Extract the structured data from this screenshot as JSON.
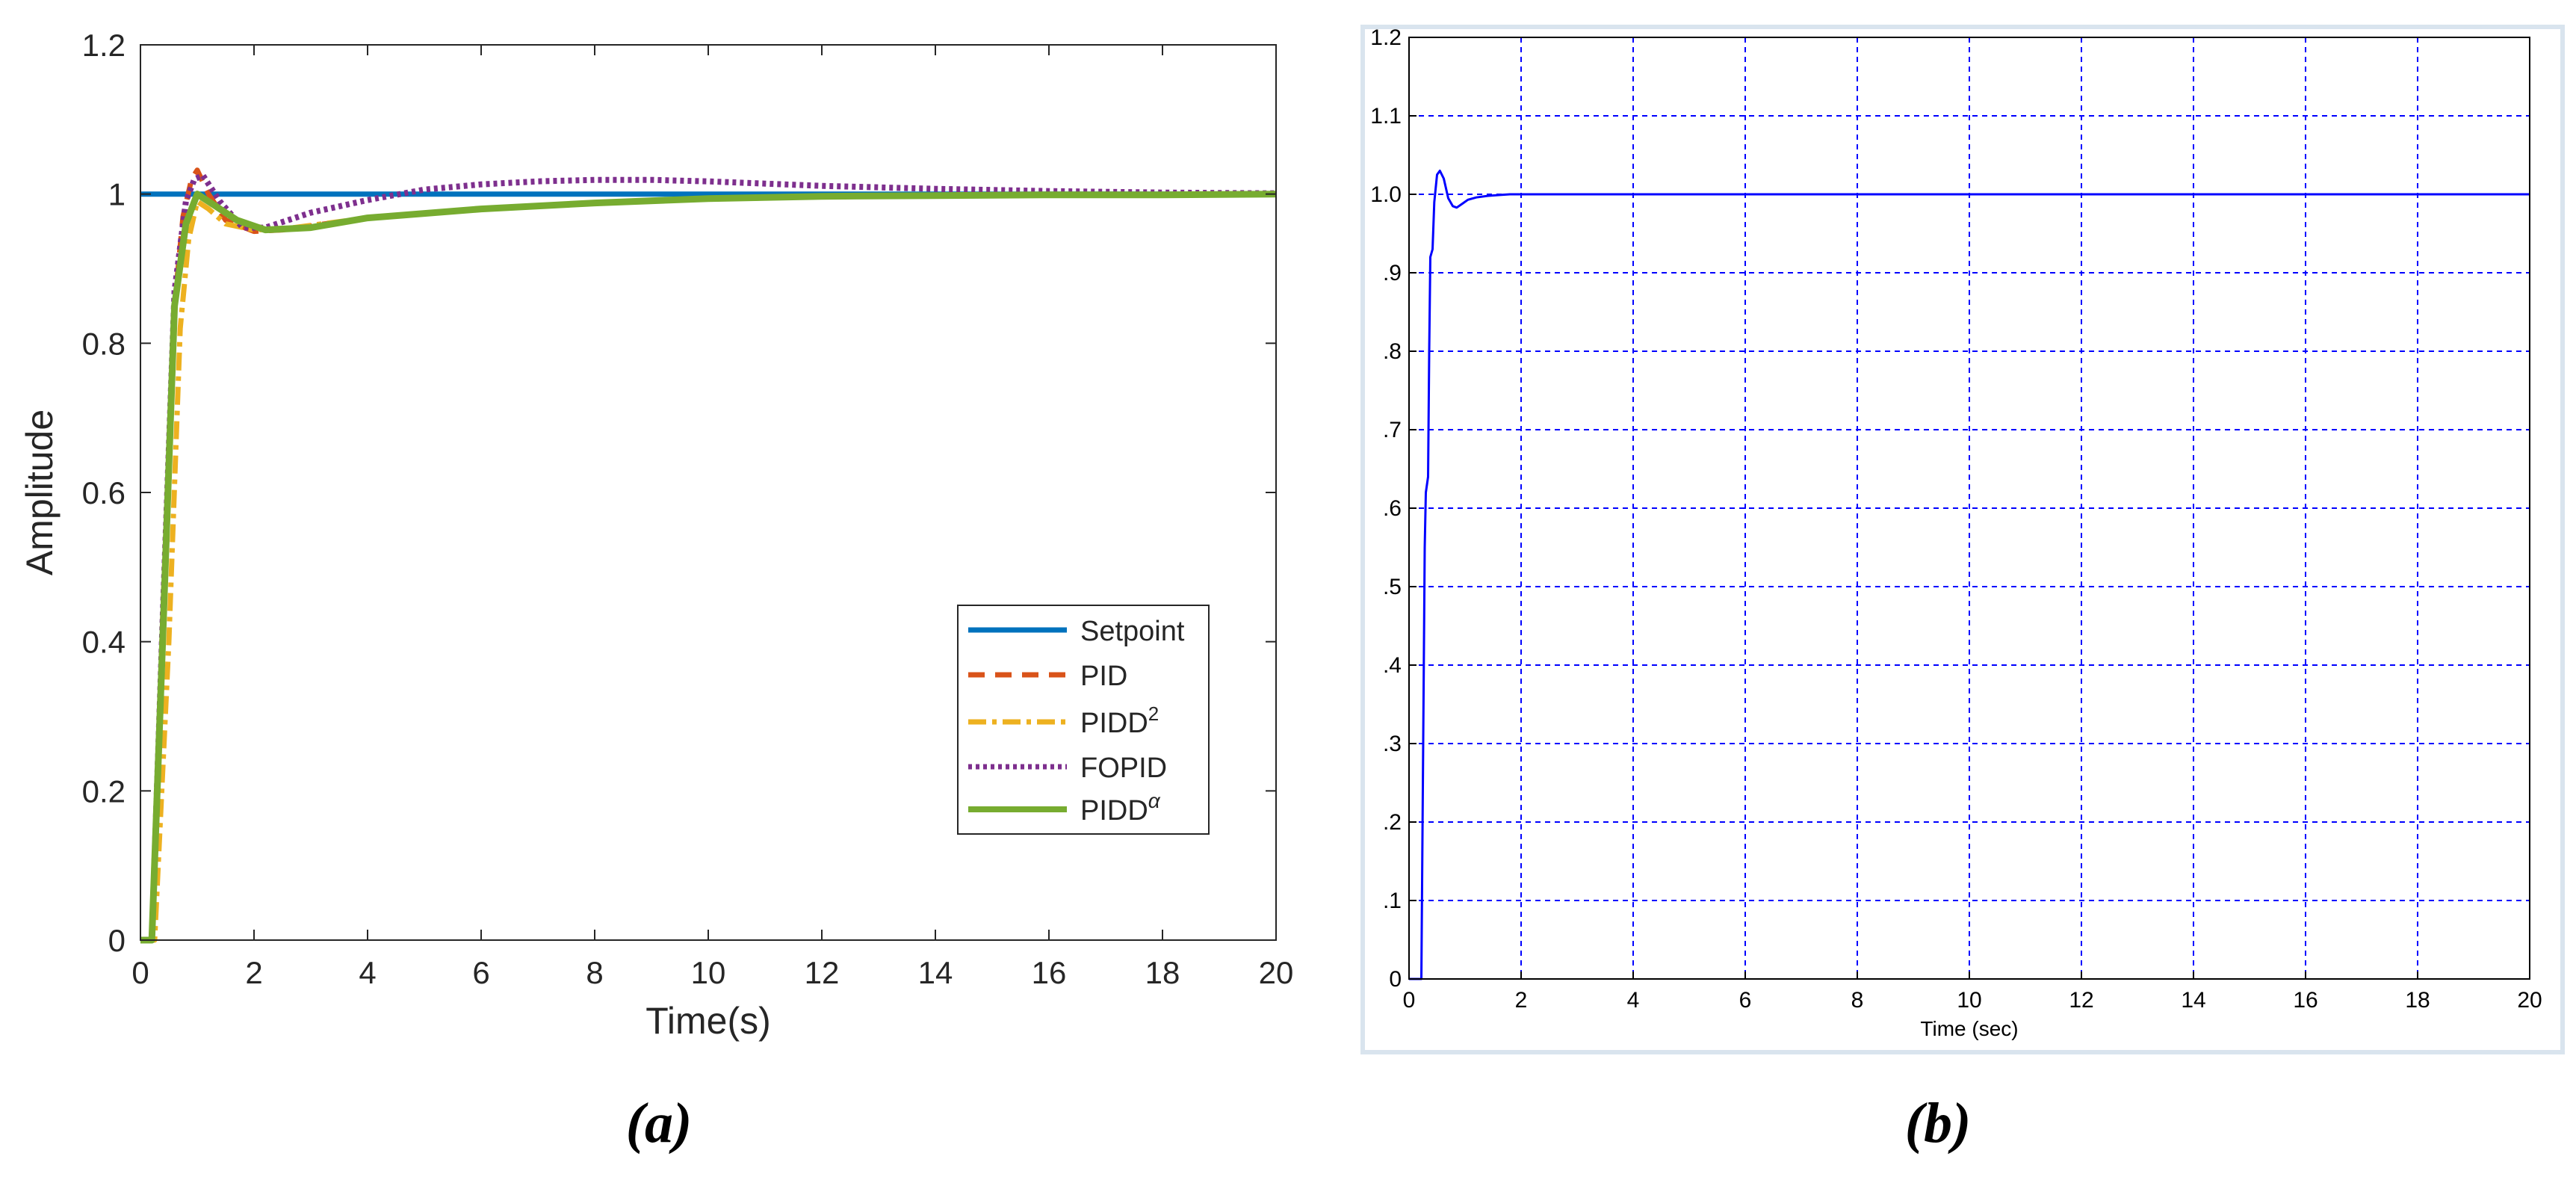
{
  "panel_labels": [
    "(a)",
    "(b)"
  ],
  "legend_labels": {
    "setpoint": "Setpoint",
    "pid": "PID",
    "pidd2_base": "PIDD",
    "pidd2_sup": "2",
    "fopid": "FOPID",
    "piddalpha_base": "PIDD",
    "piddalpha_sup": "α"
  },
  "colors": {
    "setpoint": "#0072bd",
    "pid": "#d95319",
    "pidd2": "#edb120",
    "fopid": "#7e2f8e",
    "piddalpha": "#77ac30",
    "chart_b_line": "#0000ff",
    "chart_b_grid": "#0000ff",
    "chart_b_frame": "#d9e4ee"
  },
  "chart_data": [
    {
      "type": "line",
      "title": "",
      "xlabel": "Time(s)",
      "ylabel": "Amplitude",
      "xlim": [
        0,
        20
      ],
      "ylim": [
        0,
        1.2
      ],
      "xticks": [
        0,
        2,
        4,
        6,
        8,
        10,
        12,
        14,
        16,
        18,
        20
      ],
      "yticks": [
        0,
        0.2,
        0.4,
        0.6,
        0.8,
        1,
        1.2
      ],
      "ytick_labels": [
        "0",
        "0.2",
        "0.4",
        "0.6",
        "0.8",
        "1",
        "1.2"
      ],
      "grid": false,
      "legend_position": "lower-right",
      "series": [
        {
          "key": "setpoint",
          "name": "Setpoint",
          "style": "solid",
          "x": [
            0,
            20
          ],
          "y": [
            1,
            1
          ]
        },
        {
          "key": "pid",
          "name": "PID",
          "style": "dashed",
          "x": [
            0,
            0.2,
            0.4,
            0.6,
            0.75,
            0.9,
            1.0,
            1.2,
            1.5,
            2.0,
            2.5,
            4,
            6,
            8,
            10,
            12,
            14,
            16,
            18,
            20
          ],
          "y": [
            0,
            0,
            0.45,
            0.85,
            0.97,
            1.02,
            1.032,
            1.0,
            0.965,
            0.95,
            0.952,
            0.968,
            0.98,
            0.988,
            0.994,
            0.997,
            0.998,
            0.999,
            0.999,
            1.0
          ]
        },
        {
          "key": "pidd2",
          "name": "PIDD2",
          "style": "dashdot",
          "x": [
            0,
            0.25,
            0.5,
            0.7,
            0.85,
            1.0,
            1.2,
            1.5,
            2.0,
            2.5,
            4,
            6,
            8,
            10,
            12,
            14,
            16,
            18,
            20
          ],
          "y": [
            0,
            0,
            0.4,
            0.82,
            0.94,
            0.99,
            0.98,
            0.96,
            0.952,
            0.953,
            0.968,
            0.98,
            0.988,
            0.994,
            0.997,
            0.998,
            0.999,
            0.999,
            1.0
          ]
        },
        {
          "key": "fopid",
          "name": "FOPID",
          "style": "dotted",
          "x": [
            0,
            0.2,
            0.4,
            0.6,
            0.8,
            0.95,
            1.1,
            1.4,
            1.8,
            2.2,
            3,
            4,
            5,
            6,
            7,
            8,
            9,
            10,
            11,
            12,
            14,
            16,
            18,
            20
          ],
          "y": [
            0,
            0,
            0.45,
            0.87,
            0.99,
            1.02,
            1.025,
            0.99,
            0.955,
            0.955,
            0.975,
            0.992,
            1.006,
            1.013,
            1.017,
            1.019,
            1.019,
            1.017,
            1.014,
            1.011,
            1.007,
            1.004,
            1.002,
            1.001
          ]
        },
        {
          "key": "piddalpha",
          "name": "PIDDα",
          "style": "solid",
          "x": [
            0,
            0.2,
            0.4,
            0.6,
            0.8,
            1.0,
            1.3,
            1.7,
            2.2,
            3,
            4,
            6,
            8,
            10,
            12,
            14,
            16,
            18,
            20
          ],
          "y": [
            0,
            0,
            0.42,
            0.85,
            0.96,
            1.0,
            0.985,
            0.965,
            0.952,
            0.955,
            0.968,
            0.98,
            0.988,
            0.994,
            0.997,
            0.998,
            0.999,
            0.999,
            1.0
          ]
        }
      ]
    },
    {
      "type": "line",
      "title": "",
      "xlabel": "Time (sec)",
      "ylabel": "",
      "xlim": [
        0,
        20
      ],
      "ylim": [
        0,
        1.2
      ],
      "xticks": [
        0,
        2,
        4,
        6,
        8,
        10,
        12,
        14,
        16,
        18,
        20
      ],
      "yticks": [
        0,
        0.1,
        0.2,
        0.3,
        0.4,
        0.5,
        0.6,
        0.7,
        0.8,
        0.9,
        1.0,
        1.1,
        1.2
      ],
      "ytick_labels": [
        "0",
        ".1",
        ".2",
        ".3",
        ".4",
        ".5",
        ".6",
        ".7",
        ".8",
        ".9",
        "1.0",
        "1.1",
        "1.2"
      ],
      "grid": true,
      "series": [
        {
          "key": "response",
          "x": [
            0,
            0.2,
            0.22,
            0.28,
            0.3,
            0.34,
            0.36,
            0.38,
            0.42,
            0.45,
            0.5,
            0.55,
            0.62,
            0.7,
            0.78,
            0.85,
            0.95,
            1.05,
            1.2,
            1.4,
            1.6,
            1.8,
            2.0,
            20
          ],
          "y": [
            0,
            0,
            0.0,
            0.55,
            0.62,
            0.64,
            0.8,
            0.92,
            0.93,
            0.99,
            1.025,
            1.03,
            1.02,
            0.995,
            0.985,
            0.983,
            0.988,
            0.993,
            0.996,
            0.998,
            0.999,
            1.0,
            1.0,
            1.0
          ]
        }
      ]
    }
  ]
}
